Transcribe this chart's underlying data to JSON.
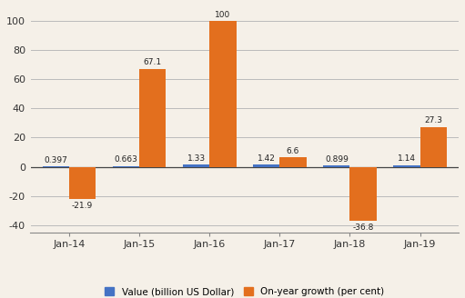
{
  "categories": [
    "Jan-14",
    "Jan-15",
    "Jan-16",
    "Jan-17",
    "Jan-18",
    "Jan-19"
  ],
  "value_billion": [
    0.397,
    0.663,
    1.33,
    1.42,
    0.899,
    1.14
  ],
  "on_year_growth": [
    -21.9,
    67.1,
    100.0,
    6.6,
    -36.8,
    27.3
  ],
  "value_labels": [
    "0.397",
    "0.663",
    "1.33",
    "1.42",
    "0.899",
    "1.14"
  ],
  "growth_labels": [
    "-21.9",
    "67.1",
    "100",
    "6.6",
    "-36.8",
    "27.3"
  ],
  "bar_color_value": "#4472c4",
  "bar_color_growth": "#e36f1e",
  "ylim": [
    -45,
    110
  ],
  "yticks": [
    -40,
    -20,
    0,
    20,
    40,
    60,
    80,
    100
  ],
  "legend_value": "Value (billion US Dollar)",
  "legend_growth": "On-year growth (per cent)",
  "background_color": "#f5f0e8",
  "grid_color": "#bbbbbb",
  "bar_width": 0.38
}
